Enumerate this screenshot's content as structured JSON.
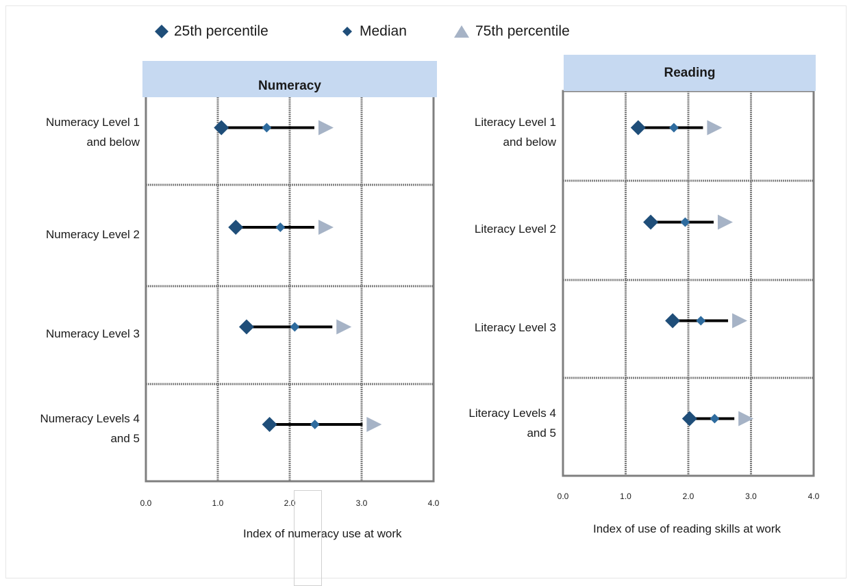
{
  "colors": {
    "p25": "#1f4e79",
    "median": "#2e6b9e",
    "p75": "#a6b3c6",
    "range_line": "#000000",
    "header_band": "#c6d9f1",
    "grid": "#7f7f7f"
  },
  "legend": {
    "items": [
      {
        "label": "25th percentile",
        "marker": "diamond-large"
      },
      {
        "label": "Median",
        "marker": "diamond-small"
      },
      {
        "label": "75th percentile",
        "marker": "triangle"
      }
    ]
  },
  "chart_data": [
    {
      "type": "dumbbell",
      "title": "Numeracy",
      "xlabel": "Index of numeracy use at work",
      "xlim": [
        0,
        4
      ],
      "x_ticks": [
        "0.0",
        "1.0",
        "2.0",
        "3.0",
        "4.0"
      ],
      "grid": true,
      "categories": [
        [
          "Numeracy Level 1",
          "and below"
        ],
        [
          "Numeracy Level 2"
        ],
        [
          "Numeracy Level 3"
        ],
        [
          "Numeracy Levels 4",
          "and 5"
        ]
      ],
      "series": [
        {
          "name": "25th percentile",
          "values": [
            1.05,
            1.25,
            1.4,
            1.72
          ]
        },
        {
          "name": "Median",
          "values": [
            1.68,
            1.87,
            2.07,
            2.35
          ]
        },
        {
          "name": "75th percentile",
          "values": [
            2.4,
            2.4,
            2.65,
            3.07
          ]
        }
      ]
    },
    {
      "type": "dumbbell",
      "title": "Reading",
      "xlabel": "Index of use of reading skills at work",
      "xlim": [
        0,
        4
      ],
      "x_ticks": [
        "0.0",
        "1.0",
        "2.0",
        "3.0",
        "4.0"
      ],
      "grid": true,
      "categories": [
        [
          "Literacy Level 1",
          "and below"
        ],
        [
          "Literacy Level 2"
        ],
        [
          "Literacy Level 3"
        ],
        [
          "Literacy Levels 4",
          "and 5"
        ]
      ],
      "series": [
        {
          "name": "25th percentile",
          "values": [
            1.2,
            1.4,
            1.75,
            2.02
          ]
        },
        {
          "name": "Median",
          "values": [
            1.77,
            1.95,
            2.2,
            2.42
          ]
        },
        {
          "name": "75th percentile",
          "values": [
            2.3,
            2.47,
            2.7,
            2.8
          ]
        }
      ]
    }
  ]
}
